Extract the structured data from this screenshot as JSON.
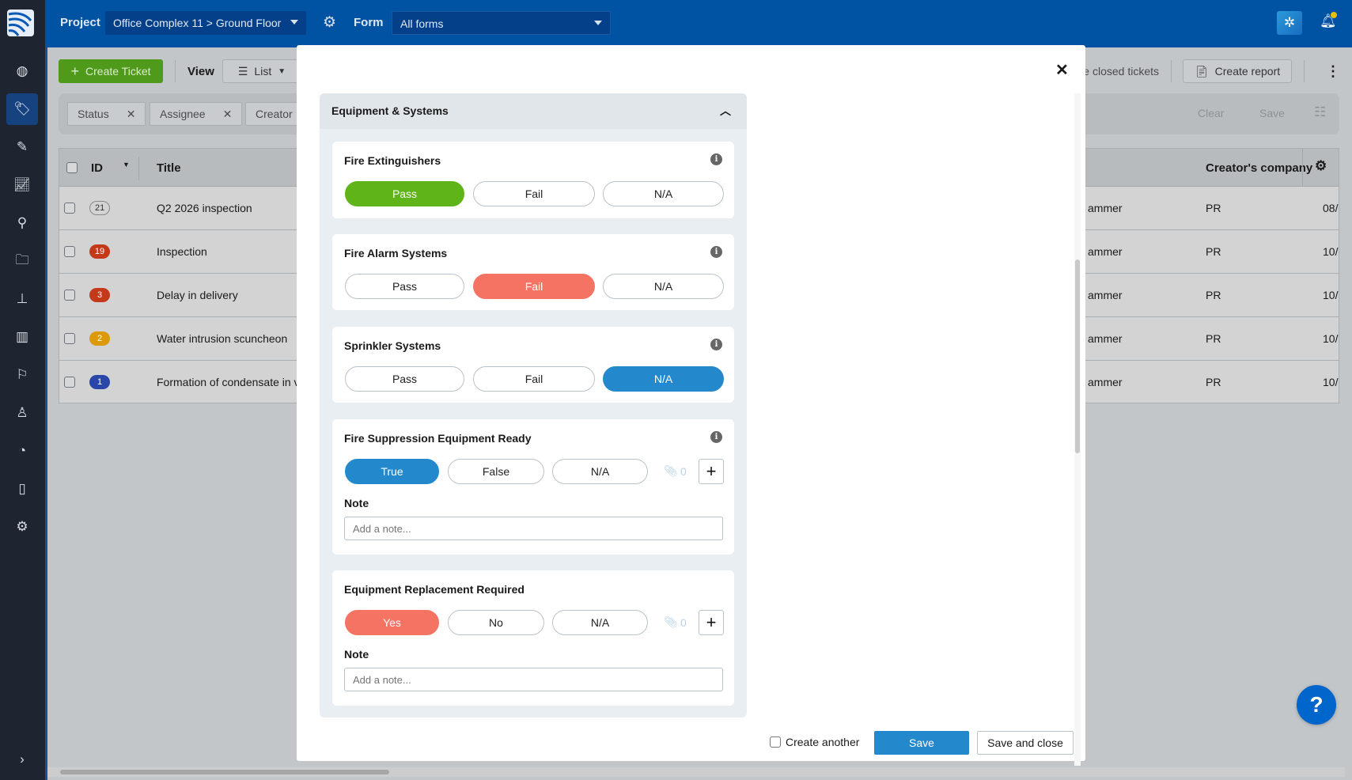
{
  "topbar": {
    "project_label": "Project",
    "project_value": "Office Complex 11 > Ground Floor",
    "form_label": "Form",
    "form_value": "All forms"
  },
  "toolbar": {
    "create_ticket": "Create Ticket",
    "view_label": "View",
    "view_value": "List",
    "closed_tickets": "e closed tickets",
    "create_report": "Create report"
  },
  "filters": {
    "chips": [
      "Status",
      "Assignee",
      "Creator"
    ],
    "clear": "Clear",
    "save": "Save"
  },
  "table": {
    "headers": {
      "id": "ID",
      "title": "Title",
      "creators_company": "Creator's company"
    },
    "rows": [
      {
        "id": "21",
        "title": "Q2 2026 inspection",
        "creator": "ammer",
        "company": "PR",
        "date": "08/",
        "badge_color": "#d3d3d3"
      },
      {
        "id": "19",
        "title": "Inspection",
        "creator": "ammer",
        "company": "PR",
        "date": "10/",
        "badge_color": "#c4391a"
      },
      {
        "id": "3",
        "title": "Delay in delivery",
        "creator": "ammer",
        "company": "PR",
        "date": "10/",
        "badge_color": "#c4391a"
      },
      {
        "id": "2",
        "title": "Water intrusion scuncheon",
        "creator": "ammer",
        "company": "PR",
        "date": "10/",
        "badge_color": "#dc9a0a"
      },
      {
        "id": "1",
        "title": "Formation of condensate in v",
        "creator": "ammer",
        "company": "PR",
        "date": "10/",
        "badge_color": "#2a46a8"
      }
    ]
  },
  "modal": {
    "section_title": "Equipment & Systems",
    "items": [
      {
        "title": "Fire Extinguishers",
        "options": [
          "Pass",
          "Fail",
          "N/A"
        ],
        "selected": "Pass"
      },
      {
        "title": "Fire Alarm Systems",
        "options": [
          "Pass",
          "Fail",
          "N/A"
        ],
        "selected": "Fail"
      },
      {
        "title": "Sprinkler Systems",
        "options": [
          "Pass",
          "Fail",
          "N/A"
        ],
        "selected": "N/A"
      },
      {
        "title": "Fire Suppression Equipment Ready",
        "options": [
          "True",
          "False",
          "N/A"
        ],
        "selected": "True",
        "attachments": "0",
        "note_label": "Note",
        "note_placeholder": "Add a note..."
      },
      {
        "title": "Equipment Replacement Required",
        "options": [
          "Yes",
          "No",
          "N/A"
        ],
        "selected": "Yes",
        "attachments": "0",
        "note_label": "Note",
        "note_placeholder": "Add a note..."
      }
    ],
    "footer": {
      "create_another": "Create another",
      "create_another_checked": false,
      "save": "Save",
      "save_and_close": "Save and close"
    }
  },
  "help": "?",
  "colors": {
    "topbar": "#0052a3",
    "pass": "#5fb41a",
    "fail": "#f47363",
    "selected_blue": "#2489cc",
    "sidebar": "#1e2430"
  }
}
